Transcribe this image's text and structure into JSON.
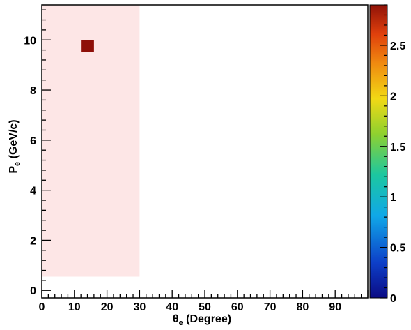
{
  "chart_data": {
    "type": "heatmap",
    "xlabel": {
      "main": "θ",
      "sub": "e",
      "rest": " (Degree)"
    },
    "ylabel": {
      "main": "P",
      "sub": "e",
      "rest": " (GeV/c)"
    },
    "xlim": [
      0,
      100
    ],
    "ylim": [
      -0.3,
      11.4
    ],
    "x_ticks": [
      0,
      10,
      20,
      30,
      40,
      50,
      60,
      70,
      80,
      90
    ],
    "y_ticks": [
      0,
      2,
      4,
      6,
      8,
      10
    ],
    "shaded_region": {
      "x": [
        0,
        30
      ],
      "y": [
        0.55,
        11.4
      ],
      "color": "#fde6e6"
    },
    "cells": [
      {
        "x": [
          12,
          16
        ],
        "y": [
          9.52,
          9.98
        ],
        "value": 2.85
      }
    ],
    "colorbar": {
      "range": [
        0,
        2.9
      ],
      "ticks": [
        0,
        0.5,
        1,
        1.5,
        2,
        2.5
      ],
      "tick_labels": [
        "0",
        "0.5",
        "1",
        "1.5",
        "2",
        "2.5"
      ]
    },
    "colors": {
      "cell": "#8e0f08",
      "shaded": "#fde6e6",
      "axis": "#000000"
    }
  }
}
